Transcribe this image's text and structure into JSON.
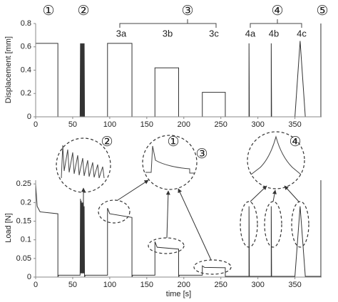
{
  "chart_data": [
    {
      "type": "line",
      "ylabel": "Displacement [mm]",
      "annotations": [
        "①",
        "②",
        "③",
        "④",
        "⑤",
        "3a",
        "3b",
        "3c",
        "4a",
        "4b",
        "4c"
      ],
      "x": [
        0,
        30,
        30,
        60,
        60.5,
        61,
        61.5,
        62,
        62.5,
        63,
        63.5,
        64,
        64.5,
        65,
        65.5,
        66,
        97,
        97,
        130,
        130,
        161,
        161,
        193,
        193,
        225,
        225,
        256,
        256,
        288,
        288,
        288.5,
        318,
        318,
        318.5,
        350,
        357,
        364,
        385,
        385
      ],
      "series": [
        {
          "color": "#333333",
          "values": [
            0.63,
            0.63,
            0,
            0,
            0.63,
            0,
            0.63,
            0,
            0.63,
            0,
            0.63,
            0,
            0.63,
            0,
            0.63,
            0,
            0,
            0.63,
            0.63,
            0,
            0,
            0.42,
            0.42,
            0,
            0,
            0.21,
            0.21,
            0,
            0,
            0.63,
            0,
            0,
            0.63,
            0,
            0,
            0.65,
            0,
            0,
            0.8
          ]
        }
      ],
      "xlim": [
        0,
        386
      ],
      "xticks": [
        0,
        50,
        100,
        150,
        200,
        250,
        300,
        350
      ],
      "ylim": [
        0,
        0.8
      ],
      "yticks": [
        0,
        0.2,
        0.4,
        0.6,
        0.8
      ]
    },
    {
      "type": "line",
      "xlabel": "time [s]",
      "ylabel": "Load [N]",
      "annotations": [
        "②",
        "①",
        "③",
        "④"
      ],
      "x": [
        0,
        2,
        6,
        30,
        30,
        31,
        60,
        60.5,
        61,
        61.5,
        62,
        62.5,
        63,
        63.5,
        64,
        64.5,
        65,
        65.5,
        66,
        67,
        97,
        97,
        100,
        130,
        130,
        131,
        161,
        161,
        164,
        193,
        193,
        194,
        225,
        225,
        228,
        256,
        256,
        288,
        288,
        288.5,
        318,
        318,
        318.5,
        350,
        357,
        364,
        385,
        385
      ],
      "series": [
        {
          "color": "#333333",
          "values": [
            0.25,
            0.19,
            0.175,
            0.17,
            0,
            0.005,
            0.005,
            0.21,
            0.01,
            0.205,
            0.01,
            0.2,
            0.01,
            0.2,
            0.01,
            0.195,
            0.01,
            0.19,
            0,
            0.005,
            0.005,
            0.185,
            0.17,
            0.16,
            0,
            0.005,
            0.005,
            0.095,
            0.08,
            0.075,
            0,
            0.005,
            0.005,
            0.03,
            0.026,
            0.025,
            0.002,
            0.002,
            0.19,
            0.002,
            0.002,
            0.19,
            0.002,
            0.002,
            0.19,
            0.002,
            0.002,
            0.26
          ]
        }
      ],
      "xlim": [
        0,
        386
      ],
      "xticks": [
        0,
        50,
        100,
        150,
        200,
        250,
        300,
        350
      ],
      "ylim": [
        0,
        0.26
      ],
      "yticks": [
        0,
        0.05,
        0.1,
        0.15,
        0.2,
        0.25
      ]
    }
  ]
}
